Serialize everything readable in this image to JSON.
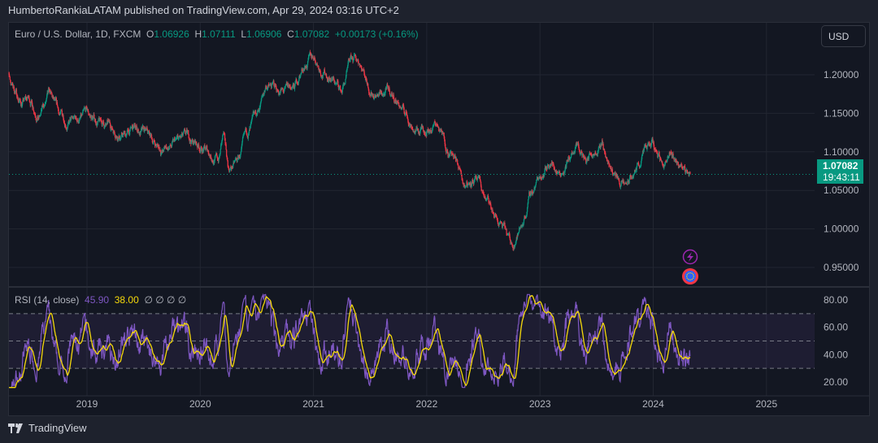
{
  "header": {
    "published": "HumbertoRankiaLATAM published on TradingView.com, Apr 29, 2024 03:16 UTC+2"
  },
  "legend": {
    "symbol": "Euro / U.S. Dollar, 1D, FXCM",
    "o_label": "O",
    "o": "1.06926",
    "h_label": "H",
    "h": "1.07111",
    "l_label": "L",
    "l": "1.06906",
    "c_label": "C",
    "c": "1.07082",
    "change": "+0.00173 (+0.16%)"
  },
  "currency_button": "USD",
  "last_price": {
    "price": "1.07082",
    "countdown": "19:43:11"
  },
  "rsi_legend": {
    "title": "RSI (14, close)",
    "rsi": "45.90",
    "ma": "38.00",
    "extra": "∅ ∅ ∅ ∅"
  },
  "footer": {
    "brand": "TradingView"
  },
  "colors": {
    "up": "#089981",
    "down": "#f23645",
    "rsi": "#7e57c2",
    "rsi_ma": "#f5d90a",
    "background": "#131722",
    "grid": "#222631"
  },
  "icons": [
    "lightning-event-icon",
    "eu-flag-event-icon"
  ],
  "chart_data": [
    {
      "type": "candlestick",
      "title": "Euro / U.S. Dollar, 1D, FXCM",
      "x_ticks": [
        "2019",
        "2020",
        "2021",
        "2022",
        "2023",
        "2024",
        "2025"
      ],
      "y_ticks": [
        "1.20000",
        "1.15000",
        "1.10000",
        "1.05000",
        "1.00000",
        "0.95000"
      ],
      "ylim": [
        0.93,
        1.255
      ],
      "grid": true,
      "last": 1.07082,
      "approx_monthly_close": [
        [
          "2018-04",
          1.232
        ],
        [
          "2018-05",
          1.19
        ],
        [
          "2018-06",
          1.165
        ],
        [
          "2018-07",
          1.167
        ],
        [
          "2018-08",
          1.149
        ],
        [
          "2018-09",
          1.17
        ],
        [
          "2018-10",
          1.144
        ],
        [
          "2018-11",
          1.139
        ],
        [
          "2018-12",
          1.14
        ],
        [
          "2019-01",
          1.144
        ],
        [
          "2019-02",
          1.138
        ],
        [
          "2019-03",
          1.133
        ],
        [
          "2019-04",
          1.128
        ],
        [
          "2019-05",
          1.123
        ],
        [
          "2019-06",
          1.128
        ],
        [
          "2019-07",
          1.123
        ],
        [
          "2019-08",
          1.112
        ],
        [
          "2019-09",
          1.102
        ],
        [
          "2019-10",
          1.107
        ],
        [
          "2019-11",
          1.112
        ],
        [
          "2019-12",
          1.112
        ],
        [
          "2020-01",
          1.107
        ],
        [
          "2020-02",
          1.097
        ],
        [
          "2020-03",
          1.091
        ],
        [
          "2020-03-15",
          1.12
        ],
        [
          "2020-04",
          1.076
        ],
        [
          "2020-05",
          1.086
        ],
        [
          "2020-06",
          1.118
        ],
        [
          "2020-07",
          1.14
        ],
        [
          "2020-08",
          1.186
        ],
        [
          "2020-09",
          1.181
        ],
        [
          "2020-10",
          1.176
        ],
        [
          "2020-11",
          1.181
        ],
        [
          "2020-12",
          1.213
        ],
        [
          "2021-01",
          1.223
        ],
        [
          "2021-02",
          1.207
        ],
        [
          "2021-03",
          1.197
        ],
        [
          "2021-04",
          1.178
        ],
        [
          "2021-05",
          1.213
        ],
        [
          "2021-06",
          1.218
        ],
        [
          "2021-07",
          1.186
        ],
        [
          "2021-08",
          1.176
        ],
        [
          "2021-09",
          1.176
        ],
        [
          "2021-10",
          1.165
        ],
        [
          "2021-11",
          1.144
        ],
        [
          "2021-12",
          1.128
        ],
        [
          "2022-01",
          1.133
        ],
        [
          "2022-02",
          1.138
        ],
        [
          "2022-03",
          1.112
        ],
        [
          "2022-04",
          1.091
        ],
        [
          "2022-05",
          1.06
        ],
        [
          "2022-06",
          1.07
        ],
        [
          "2022-07",
          1.044
        ],
        [
          "2022-08",
          1.018
        ],
        [
          "2022-09",
          1.002
        ],
        [
          "2022-10",
          0.975
        ],
        [
          "2022-11",
          1.002
        ],
        [
          "2022-12",
          1.044
        ],
        [
          "2023-01",
          1.07
        ],
        [
          "2023-02",
          1.091
        ],
        [
          "2023-03",
          1.076
        ],
        [
          "2023-04",
          1.091
        ],
        [
          "2023-05",
          1.102
        ],
        [
          "2023-06",
          1.086
        ],
        [
          "2023-07",
          1.112
        ],
        [
          "2023-07-20",
          1.123
        ],
        [
          "2023-08",
          1.097
        ],
        [
          "2023-09",
          1.07
        ],
        [
          "2023-10",
          1.054
        ],
        [
          "2023-11",
          1.07
        ],
        [
          "2023-12",
          1.097
        ],
        [
          "2024-01",
          1.105
        ],
        [
          "2024-02",
          1.086
        ],
        [
          "2024-03",
          1.091
        ],
        [
          "2024-04",
          1.081
        ],
        [
          "2024-04-29",
          1.07082
        ]
      ]
    },
    {
      "type": "line",
      "title": "RSI (14, close)",
      "series": [
        {
          "name": "RSI",
          "last": 45.9
        },
        {
          "name": "RSI-based MA",
          "last": 38.0
        }
      ],
      "y_ticks": [
        "80.00",
        "60.00",
        "40.00",
        "20.00"
      ],
      "bands": [
        70,
        50,
        30
      ],
      "ylim": [
        15,
        85
      ]
    }
  ]
}
